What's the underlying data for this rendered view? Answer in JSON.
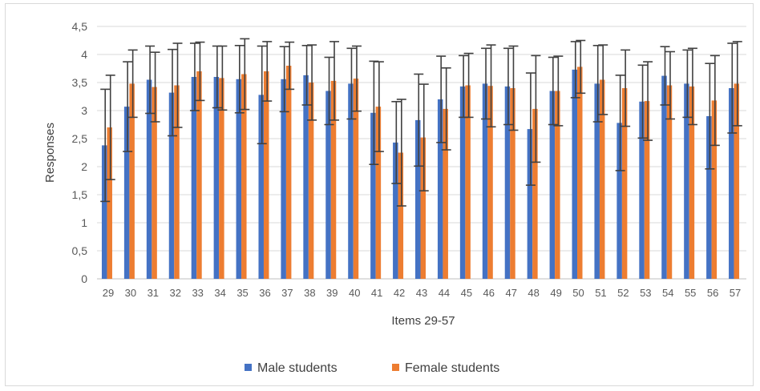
{
  "chart_data": {
    "type": "bar",
    "title": "",
    "xlabel": "Items 29-57",
    "ylabel": "Responses",
    "ylim": [
      0,
      4.5
    ],
    "yticks": [
      "0",
      "0,5",
      "1",
      "1,5",
      "2",
      "2,5",
      "3",
      "3,5",
      "4",
      "4,5"
    ],
    "grid": true,
    "legend_position": "bottom",
    "categories": [
      "29",
      "30",
      "31",
      "32",
      "33",
      "34",
      "35",
      "36",
      "37",
      "38",
      "39",
      "40",
      "41",
      "42",
      "43",
      "44",
      "45",
      "46",
      "47",
      "48",
      "49",
      "50",
      "51",
      "52",
      "53",
      "54",
      "55",
      "56",
      "57"
    ],
    "series": [
      {
        "name": "Male students",
        "color": "#4472C4",
        "values": [
          2.38,
          3.07,
          3.55,
          3.32,
          3.6,
          3.6,
          3.56,
          3.28,
          3.56,
          3.63,
          3.35,
          3.48,
          2.96,
          2.43,
          2.83,
          3.2,
          3.43,
          3.48,
          3.43,
          2.67,
          3.35,
          3.73,
          3.48,
          2.78,
          3.16,
          3.62,
          3.48,
          2.9,
          3.4
        ],
        "error": [
          1.0,
          0.8,
          0.6,
          0.77,
          0.6,
          0.55,
          0.6,
          0.87,
          0.58,
          0.53,
          0.6,
          0.63,
          0.92,
          0.73,
          0.82,
          0.77,
          0.55,
          0.63,
          0.68,
          1.0,
          0.6,
          0.5,
          0.68,
          0.85,
          0.65,
          0.52,
          0.6,
          0.94,
          0.8
        ]
      },
      {
        "name": "Female students",
        "color": "#ED7D31",
        "values": [
          2.7,
          3.48,
          3.42,
          3.45,
          3.7,
          3.58,
          3.65,
          3.7,
          3.8,
          3.5,
          3.53,
          3.57,
          3.07,
          2.25,
          2.52,
          3.03,
          3.45,
          3.44,
          3.4,
          3.03,
          3.35,
          3.78,
          3.55,
          3.4,
          3.17,
          3.45,
          3.43,
          3.18,
          3.48
        ],
        "error": [
          0.93,
          0.6,
          0.62,
          0.75,
          0.52,
          0.57,
          0.63,
          0.53,
          0.42,
          0.67,
          0.7,
          0.58,
          0.8,
          0.95,
          0.95,
          0.73,
          0.57,
          0.73,
          0.75,
          0.95,
          0.62,
          0.47,
          0.62,
          0.68,
          0.7,
          0.6,
          0.68,
          0.8,
          0.75
        ]
      }
    ]
  }
}
